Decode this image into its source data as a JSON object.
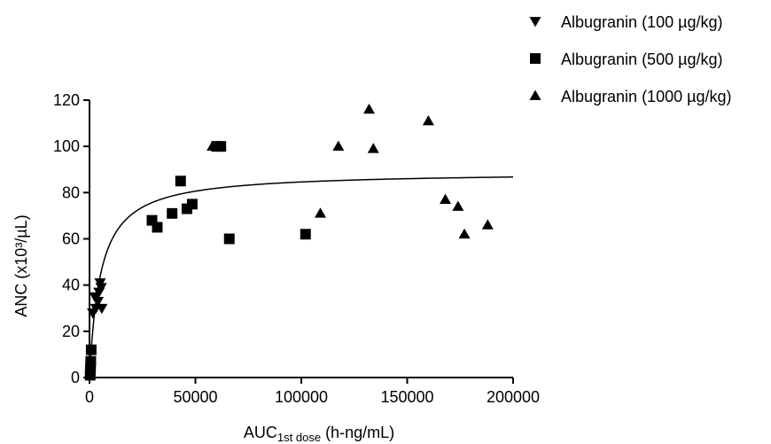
{
  "chart_data": {
    "type": "scatter",
    "xlabel": {
      "main": "AUC",
      "sub": "1st dose",
      "suffix": " (h-ng/mL)"
    },
    "ylabel": "ANC (x10³/µL)",
    "xlim": [
      0,
      200000
    ],
    "ylim": [
      0,
      120
    ],
    "x_ticks": [
      0,
      50000,
      100000,
      150000,
      200000
    ],
    "x_tick_labels": [
      "0",
      "50000",
      "100000",
      "150000",
      "200000"
    ],
    "y_ticks": [
      0,
      20,
      40,
      60,
      80,
      100,
      120
    ],
    "y_tick_labels": [
      "0",
      "20",
      "40",
      "60",
      "80",
      "100",
      "120"
    ],
    "grid": false,
    "legend_position": "top-right",
    "series": [
      {
        "name": "Albugranin (100 µg/kg)",
        "marker": "triangle-down",
        "points": [
          {
            "x": 1500,
            "y": 28
          },
          {
            "x": 2500,
            "y": 35
          },
          {
            "x": 3000,
            "y": 30
          },
          {
            "x": 4000,
            "y": 33
          },
          {
            "x": 4500,
            "y": 37
          },
          {
            "x": 5000,
            "y": 41
          },
          {
            "x": 5500,
            "y": 39
          },
          {
            "x": 5800,
            "y": 30
          }
        ]
      },
      {
        "name": "Albugranin (500 µg/kg)",
        "marker": "square",
        "points": [
          {
            "x": 300,
            "y": 1
          },
          {
            "x": 400,
            "y": 3
          },
          {
            "x": 500,
            "y": 5
          },
          {
            "x": 600,
            "y": 7
          },
          {
            "x": 800,
            "y": 12
          },
          {
            "x": 29500,
            "y": 68
          },
          {
            "x": 32000,
            "y": 65
          },
          {
            "x": 39000,
            "y": 71
          },
          {
            "x": 43000,
            "y": 85
          },
          {
            "x": 46000,
            "y": 73
          },
          {
            "x": 48500,
            "y": 75
          },
          {
            "x": 60000,
            "y": 100
          },
          {
            "x": 62000,
            "y": 100
          },
          {
            "x": 66000,
            "y": 60
          },
          {
            "x": 102000,
            "y": 62
          }
        ]
      },
      {
        "name": "Albugranin (1000 µg/kg)",
        "marker": "triangle-up",
        "points": [
          {
            "x": 58000,
            "y": 100
          },
          {
            "x": 109000,
            "y": 71
          },
          {
            "x": 117500,
            "y": 100
          },
          {
            "x": 132000,
            "y": 116
          },
          {
            "x": 134000,
            "y": 99
          },
          {
            "x": 160000,
            "y": 111
          },
          {
            "x": 168000,
            "y": 77
          },
          {
            "x": 174000,
            "y": 74
          },
          {
            "x": 177000,
            "y": 62
          },
          {
            "x": 188000,
            "y": 66
          }
        ]
      }
    ],
    "fit_curve": {
      "model": "emax",
      "emax": 89,
      "ec50": 5200,
      "x_start": 0,
      "x_end": 200000
    }
  }
}
